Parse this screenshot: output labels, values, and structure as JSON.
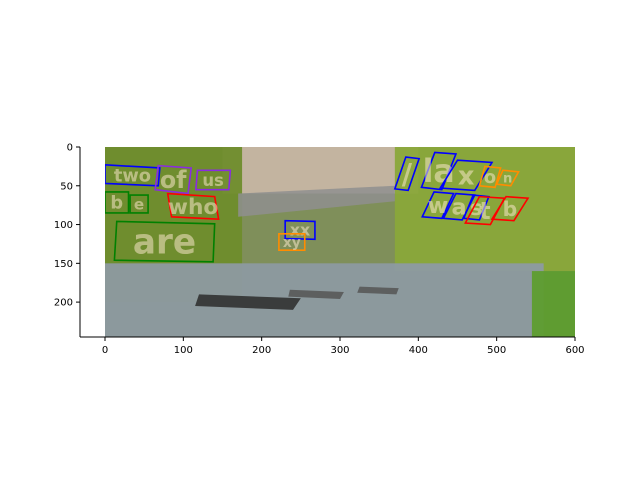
{
  "chart_data": {
    "type": "image-annotation",
    "title": "",
    "xlabel": "",
    "ylabel": "",
    "xlim": [
      -30,
      600
    ],
    "ylim": [
      245,
      0
    ],
    "grid": false,
    "x_ticks": [
      0,
      100,
      200,
      300,
      400,
      500,
      600
    ],
    "y_ticks": [
      0,
      50,
      100,
      150,
      200
    ],
    "image": {
      "extent": {
        "x": [
          0,
          600
        ],
        "y": [
          0,
          245
        ]
      },
      "description_regions": [
        {
          "name": "sky",
          "color": "#c7b6a4",
          "x": [
            150,
            400
          ],
          "y": [
            0,
            60
          ]
        },
        {
          "name": "left-willow",
          "color": "#6f8d2c",
          "x": [
            0,
            175
          ],
          "y": [
            0,
            200
          ]
        },
        {
          "name": "right-willow",
          "color": "#8aa83a",
          "x": [
            370,
            600
          ],
          "y": [
            0,
            160
          ]
        },
        {
          "name": "river",
          "color": "#8d9aa1",
          "x": [
            0,
            560
          ],
          "y": [
            150,
            245
          ]
        },
        {
          "name": "grass-bank",
          "color": "#5e9d2f",
          "x": [
            545,
            600
          ],
          "y": [
            160,
            245
          ]
        }
      ]
    },
    "annotations": [
      {
        "text": "two",
        "color": "#0000ff",
        "polygon": [
          [
            0,
            23
          ],
          [
            70,
            27
          ],
          [
            68,
            50
          ],
          [
            0,
            47
          ]
        ]
      },
      {
        "text": "of",
        "color": "#8a2be2",
        "polygon": [
          [
            68,
            24
          ],
          [
            110,
            27
          ],
          [
            106,
            60
          ],
          [
            64,
            55
          ]
        ]
      },
      {
        "text": "us",
        "color": "#8a2be2",
        "polygon": [
          [
            118,
            30
          ],
          [
            160,
            30
          ],
          [
            158,
            55
          ],
          [
            116,
            55
          ]
        ]
      },
      {
        "text": "b",
        "color": "#008000",
        "polygon": [
          [
            0,
            58
          ],
          [
            30,
            58
          ],
          [
            30,
            85
          ],
          [
            0,
            85
          ]
        ]
      },
      {
        "text": "e",
        "color": "#008000",
        "polygon": [
          [
            32,
            62
          ],
          [
            55,
            62
          ],
          [
            55,
            85
          ],
          [
            32,
            85
          ]
        ]
      },
      {
        "text": "who",
        "color": "#ff0000",
        "polygon": [
          [
            80,
            60
          ],
          [
            140,
            64
          ],
          [
            145,
            93
          ],
          [
            85,
            90
          ]
        ]
      },
      {
        "text": "are",
        "color": "#008000",
        "polygon": [
          [
            15,
            96
          ],
          [
            140,
            99
          ],
          [
            138,
            148
          ],
          [
            12,
            146
          ]
        ]
      },
      {
        "text": "xx",
        "color": "#0000ff",
        "polygon": [
          [
            230,
            95
          ],
          [
            268,
            96
          ],
          [
            268,
            119
          ],
          [
            230,
            118
          ]
        ]
      },
      {
        "text": "xy",
        "color": "#ff8c00",
        "polygon": [
          [
            222,
            112
          ],
          [
            255,
            112
          ],
          [
            255,
            133
          ],
          [
            222,
            133
          ]
        ]
      },
      {
        "text": "/",
        "color": "#0000ff",
        "polygon": [
          [
            384,
            13
          ],
          [
            401,
            15
          ],
          [
            387,
            56
          ],
          [
            370,
            54
          ]
        ]
      },
      {
        "text": "la",
        "color": "#0000ff",
        "polygon": [
          [
            421,
            7
          ],
          [
            448,
            9
          ],
          [
            430,
            55
          ],
          [
            404,
            52
          ]
        ]
      },
      {
        "text": "x",
        "color": "#0000ff",
        "polygon": [
          [
            450,
            17
          ],
          [
            494,
            20
          ],
          [
            472,
            56
          ],
          [
            428,
            53
          ]
        ]
      },
      {
        "text": "o",
        "color": "#ff8c00",
        "polygon": [
          [
            485,
            25
          ],
          [
            505,
            27
          ],
          [
            498,
            52
          ],
          [
            478,
            50
          ]
        ]
      },
      {
        "text": "n",
        "color": "#ff8c00",
        "polygon": [
          [
            508,
            30
          ],
          [
            528,
            32
          ],
          [
            518,
            50
          ],
          [
            500,
            48
          ]
        ]
      },
      {
        "text": "w",
        "color": "#0000ff",
        "polygon": [
          [
            420,
            58
          ],
          [
            445,
            60
          ],
          [
            430,
            92
          ],
          [
            405,
            90
          ]
        ]
      },
      {
        "text": "a",
        "color": "#0000ff",
        "polygon": [
          [
            448,
            60
          ],
          [
            472,
            62
          ],
          [
            456,
            94
          ],
          [
            432,
            92
          ]
        ]
      },
      {
        "text": "s",
        "color": "#0000ff",
        "polygon": [
          [
            470,
            62
          ],
          [
            490,
            64
          ],
          [
            478,
            94
          ],
          [
            458,
            92
          ]
        ]
      },
      {
        "text": "t",
        "color": "#ff0000",
        "polygon": [
          [
            478,
            64
          ],
          [
            510,
            66
          ],
          [
            492,
            100
          ],
          [
            460,
            98
          ]
        ]
      },
      {
        "text": "b",
        "color": "#ff0000",
        "polygon": [
          [
            512,
            64
          ],
          [
            540,
            66
          ],
          [
            522,
            95
          ],
          [
            494,
            93
          ]
        ]
      }
    ],
    "objects": [
      {
        "name": "punt-1",
        "color": "#2b2b2b",
        "polygon": [
          [
            120,
            190
          ],
          [
            250,
            195
          ],
          [
            240,
            210
          ],
          [
            115,
            205
          ]
        ]
      },
      {
        "name": "punt-2",
        "color": "#555555",
        "polygon": [
          [
            236,
            184
          ],
          [
            305,
            187
          ],
          [
            300,
            196
          ],
          [
            234,
            193
          ]
        ]
      },
      {
        "name": "punt-3",
        "color": "#555555",
        "polygon": [
          [
            325,
            180
          ],
          [
            375,
            182
          ],
          [
            372,
            190
          ],
          [
            322,
            188
          ]
        ]
      },
      {
        "name": "bridge",
        "color": "#8f8f8f",
        "polygon": [
          [
            170,
            60
          ],
          [
            370,
            50
          ],
          [
            370,
            70
          ],
          [
            170,
            90
          ]
        ]
      }
    ]
  }
}
